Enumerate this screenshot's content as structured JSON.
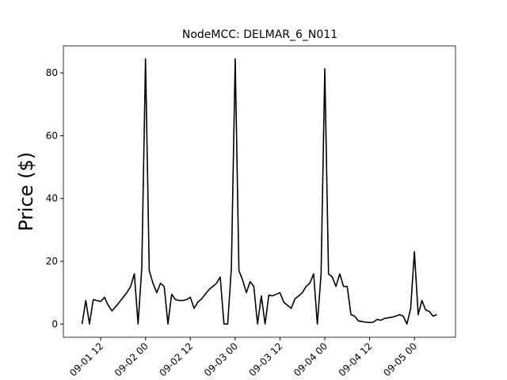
{
  "chart_data": {
    "type": "line",
    "title": "NodeMCC: DELMAR_6_N011",
    "y_label": "Price ($)",
    "x": [
      "09-01 07",
      "09-01 08",
      "09-01 09",
      "09-01 10",
      "09-01 11",
      "09-01 12",
      "09-01 13",
      "09-01 14",
      "09-01 15",
      "09-01 16",
      "09-01 17",
      "09-01 18",
      "09-01 19",
      "09-01 20",
      "09-01 21",
      "09-01 22",
      "09-01 23",
      "09-02 00",
      "09-02 01",
      "09-02 02",
      "09-02 03",
      "09-02 04",
      "09-02 05",
      "09-02 06",
      "09-02 07",
      "09-02 08",
      "09-02 09",
      "09-02 10",
      "09-02 11",
      "09-02 12",
      "09-02 13",
      "09-02 14",
      "09-02 15",
      "09-02 16",
      "09-02 17",
      "09-02 18",
      "09-02 19",
      "09-02 20",
      "09-02 21",
      "09-02 22",
      "09-02 23",
      "09-03 00",
      "09-03 01",
      "09-03 02",
      "09-03 03",
      "09-03 04",
      "09-03 05",
      "09-03 06",
      "09-03 07",
      "09-03 08",
      "09-03 09",
      "09-03 10",
      "09-03 11",
      "09-03 12",
      "09-03 13",
      "09-03 14",
      "09-03 15",
      "09-03 16",
      "09-03 17",
      "09-03 18",
      "09-03 19",
      "09-03 20",
      "09-03 21",
      "09-03 22",
      "09-03 23",
      "09-04 00",
      "09-04 01",
      "09-04 02",
      "09-04 03",
      "09-04 04",
      "09-04 05",
      "09-04 06",
      "09-04 07",
      "09-04 08",
      "09-04 09",
      "09-04 10",
      "09-04 11",
      "09-04 12",
      "09-04 13",
      "09-04 14",
      "09-04 15",
      "09-04 16",
      "09-04 17",
      "09-04 18",
      "09-04 19",
      "09-04 20",
      "09-04 21",
      "09-04 22",
      "09-04 23",
      "09-05 00",
      "09-05 01",
      "09-05 02",
      "09-05 03",
      "09-05 04",
      "09-05 05",
      "09-05 06"
    ],
    "series": [
      {
        "name": "Price",
        "color": "#000000",
        "values": [
          0,
          7.5,
          0,
          7.8,
          7.5,
          7.2,
          8.5,
          6,
          4.2,
          5.5,
          7,
          8.5,
          10,
          12,
          16,
          0,
          18,
          84.5,
          17,
          13,
          10,
          13,
          12,
          0,
          9.5,
          7.8,
          7.5,
          7.5,
          7.8,
          8.5,
          5,
          7,
          8,
          9.5,
          11,
          12,
          13,
          15,
          0,
          0,
          18,
          84.5,
          17,
          14,
          10,
          13.5,
          12,
          0,
          9,
          0,
          9.2,
          9,
          9.5,
          10,
          7,
          6,
          5,
          8,
          9,
          10,
          12,
          13,
          16,
          0,
          16,
          81.3,
          16,
          15,
          12,
          16,
          12,
          12,
          3,
          2.5,
          1,
          0.8,
          0.6,
          0.5,
          0.6,
          1.5,
          1.2,
          1.8,
          2,
          2.2,
          2.5,
          3,
          2.5,
          0,
          5,
          23,
          3,
          7.5,
          4.5,
          4,
          2.5,
          3
        ]
      }
    ],
    "xlim": [
      "09-01 02",
      "09-05 11"
    ],
    "xticks": [
      "09-01 12",
      "09-02 00",
      "09-02 12",
      "09-03 00",
      "09-03 12",
      "09-04 00",
      "09-04 12",
      "09-05 00"
    ],
    "ylim": [
      -4.2,
      88.6
    ],
    "yticks": [
      0,
      20,
      40,
      60,
      80
    ]
  }
}
